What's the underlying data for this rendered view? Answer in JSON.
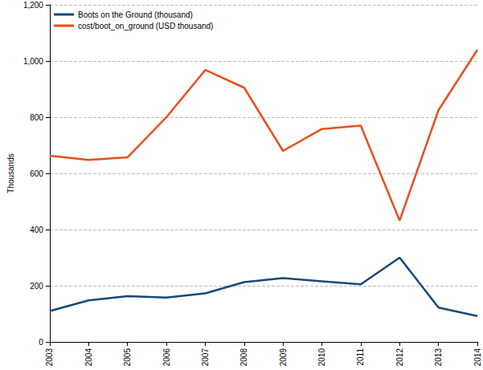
{
  "chart_data": {
    "type": "line",
    "y_label": "Thousands",
    "categories": [
      "2003",
      "2004",
      "2005",
      "2006",
      "2007",
      "2008",
      "2009",
      "2010",
      "2011",
      "2012",
      "2013",
      "2014"
    ],
    "series": [
      {
        "name": "Boots on the Ground (thousand)",
        "color": "#17497a",
        "values": [
          110,
          148,
          163,
          158,
          173,
          213,
          227,
          216,
          205,
          300,
          122,
          92
        ]
      },
      {
        "name": "cost/boot_on_ground (USD thousand)",
        "color": "#ea4e1b",
        "values": [
          663,
          648,
          657,
          800,
          968,
          905,
          680,
          758,
          770,
          432,
          825,
          1040
        ]
      }
    ],
    "ylim": [
      0,
      1200
    ],
    "yticks": [
      0,
      200,
      400,
      600,
      800,
      {
        "value": 1000,
        "label": "1,000"
      },
      {
        "value": 1200,
        "label": "1,200"
      }
    ],
    "grid": true,
    "legend": "upper left"
  }
}
